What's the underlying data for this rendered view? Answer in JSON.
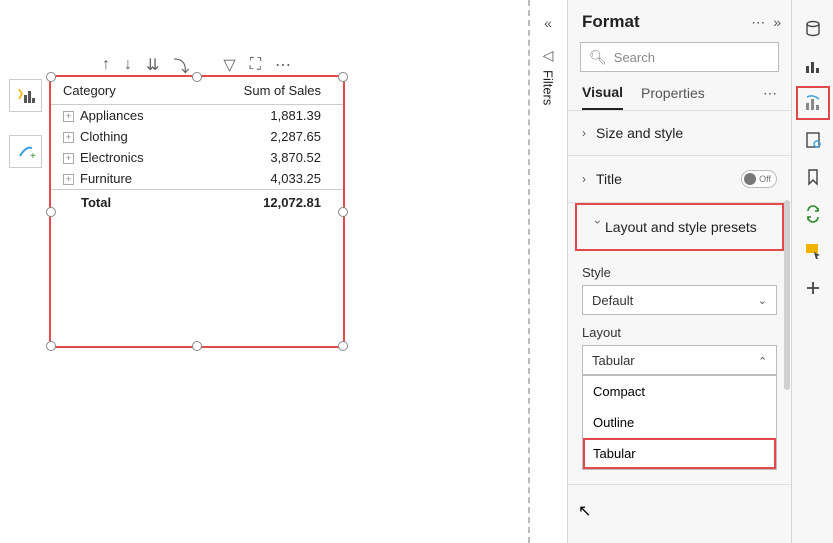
{
  "matrix": {
    "columns": [
      "Category",
      "Sum of Sales"
    ],
    "rows": [
      {
        "label": "Appliances",
        "value": "1,881.39"
      },
      {
        "label": "Clothing",
        "value": "2,287.65"
      },
      {
        "label": "Electronics",
        "value": "3,870.52"
      },
      {
        "label": "Furniture",
        "value": "4,033.25"
      }
    ],
    "total_label": "Total",
    "total_value": "12,072.81"
  },
  "filters": {
    "label": "Filters"
  },
  "format": {
    "title": "Format",
    "search_placeholder": "Search",
    "tabs": {
      "visual": "Visual",
      "properties": "Properties"
    },
    "sections": {
      "size": "Size and style",
      "title": "Title",
      "title_toggle": "Off",
      "layout": "Layout and style presets"
    },
    "style": {
      "label": "Style",
      "value": "Default"
    },
    "layout": {
      "label": "Layout",
      "value": "Tabular",
      "options": [
        "Compact",
        "Outline",
        "Tabular"
      ]
    }
  },
  "colors": {
    "highlight": "#e14a4a",
    "panel_bg": "#f7f7f7",
    "border": "#bcbcbc"
  }
}
